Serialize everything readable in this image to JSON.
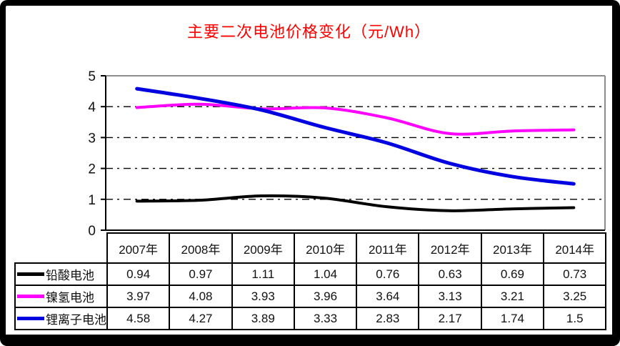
{
  "chart_data": {
    "type": "line",
    "title": "主要二次电池价格变化（元/Wh）",
    "title_color": "#ff0000",
    "categories": [
      "2007年",
      "2008年",
      "2009年",
      "2010年",
      "2011年",
      "2012年",
      "2013年",
      "2014年"
    ],
    "series": [
      {
        "name": "铅酸电池",
        "color": "#000000",
        "values": [
          0.94,
          0.97,
          1.11,
          1.04,
          0.76,
          0.63,
          0.69,
          0.73
        ]
      },
      {
        "name": "镍氢电池",
        "color": "#ff00ff",
        "values": [
          3.97,
          4.08,
          3.93,
          3.96,
          3.64,
          3.13,
          3.21,
          3.25
        ]
      },
      {
        "name": "锂离子电池",
        "color": "#0000e0",
        "values": [
          4.58,
          4.27,
          3.89,
          3.33,
          2.83,
          2.17,
          1.74,
          1.5
        ]
      }
    ],
    "ylim": [
      0,
      5
    ],
    "ytick_labels": [
      "0",
      "1",
      "2",
      "3",
      "4",
      "5"
    ],
    "xlabel": "",
    "ylabel": "",
    "grid": "horizontal-dash-dot",
    "smoothed": true,
    "legend_position": "data-table-left",
    "plot_border_color": "#8c8c8c",
    "axis_color": "#000000"
  }
}
